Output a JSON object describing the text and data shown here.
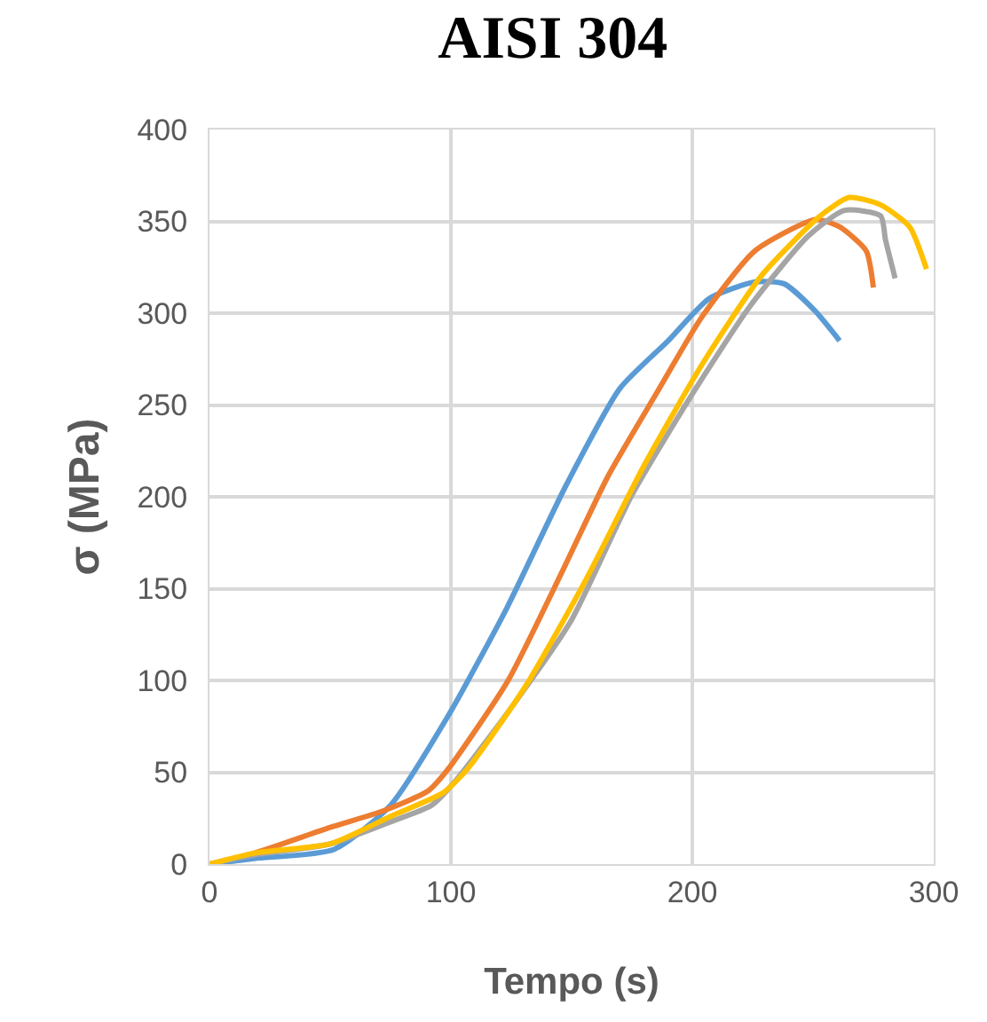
{
  "chart_data": {
    "type": "line",
    "title": "AISI 304",
    "xlabel": "Tempo (s)",
    "ylabel": "σ (MPa)",
    "xlim": [
      0,
      300
    ],
    "ylim": [
      0,
      400
    ],
    "xticks": [
      0,
      100,
      200,
      300
    ],
    "yticks": [
      0,
      50,
      100,
      150,
      200,
      250,
      300,
      350,
      400
    ],
    "grid": true,
    "marker": "none",
    "line_style": "solid",
    "series": [
      {
        "color": "#5b9bd5",
        "x": [
          0,
          18.6,
          51.6,
          75,
          99,
          123,
          148,
          170,
          190,
          207,
          226,
          238,
          251,
          261
        ],
        "values": [
          0,
          3,
          8,
          32,
          81,
          139,
          207,
          259,
          285,
          308,
          317,
          316,
          301,
          285
        ]
      },
      {
        "color": "#ed7d31",
        "x": [
          0,
          18.6,
          50,
          72,
          90.7,
          99,
          123.7,
          146,
          165,
          185,
          204,
          226,
          251,
          261,
          272,
          275
        ],
        "values": [
          0,
          6,
          20,
          29,
          40,
          52,
          100,
          159,
          211,
          256,
          298,
          334,
          351,
          347,
          334,
          314
        ]
      },
      {
        "color": "#a5a5a5",
        "x": [
          0,
          18.6,
          50,
          75,
          92,
          101.7,
          126,
          150,
          175,
          200,
          224,
          248,
          263,
          278,
          280,
          284
        ],
        "values": [
          0,
          5,
          11,
          23,
          32,
          45,
          87,
          133,
          201,
          256,
          304,
          342,
          356,
          353,
          340,
          319
        ]
      },
      {
        "color": "#ffc000",
        "x": [
          0,
          18.6,
          50,
          75,
          97,
          107,
          131,
          156,
          180,
          204,
          229,
          253,
          265,
          278,
          290,
          297
        ],
        "values": [
          0,
          6,
          11,
          26,
          39,
          52,
          97,
          155,
          217,
          272,
          321,
          353,
          363,
          359,
          347,
          324
        ]
      }
    ]
  }
}
